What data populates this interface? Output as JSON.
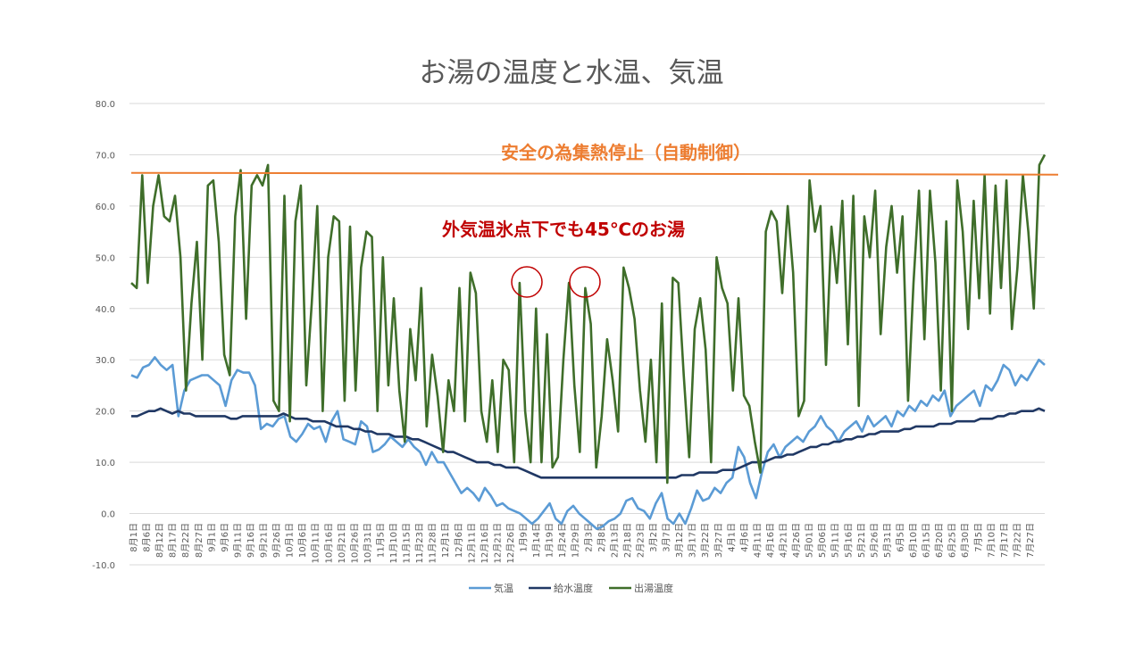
{
  "chart_data": {
    "type": "line",
    "title": "お湯の温度と水温、気温",
    "ylim": [
      -10,
      80
    ],
    "yticks": [
      "80.0",
      "70.0",
      "60.0",
      "50.0",
      "40.0",
      "30.0",
      "20.0",
      "10.0",
      "0.0",
      "-10.0"
    ],
    "x_tick_labels": [
      "8月1日",
      "8月6日",
      "8月12日",
      "8月17日",
      "8月22日",
      "8月27日",
      "9月1日",
      "9月6日",
      "9月11日",
      "9月16日",
      "9月21日",
      "9月26日",
      "10月1日",
      "10月6日",
      "10月11日",
      "10月16日",
      "10月21日",
      "10月26日",
      "10月31日",
      "11月5日",
      "11月10日",
      "11月15日",
      "11月23日",
      "11月28日",
      "12月1日",
      "12月6日",
      "12月11日",
      "12月16日",
      "12月21日",
      "12月26日",
      "1月9日",
      "1月14日",
      "1月19日",
      "1月24日",
      "1月29日",
      "2月3日",
      "2月8日",
      "2月13日",
      "2月18日",
      "2月23日",
      "3月2日",
      "3月7日",
      "3月12日",
      "3月17日",
      "3月22日",
      "3月27日",
      "4月1日",
      "4月6日",
      "4月11日",
      "4月16日",
      "4月21日",
      "4月26日",
      "5月01日",
      "5月06日",
      "5月11日",
      "5月16日",
      "5月21日",
      "5月26日",
      "5月31日",
      "6月5日",
      "6月10日",
      "6月15日",
      "6月20日",
      "6月25日",
      "6月30日",
      "7月5日",
      "7月10日",
      "7月17日",
      "7月22日",
      "7月27日"
    ],
    "grid": true,
    "legend": "bottom",
    "series": [
      {
        "name": "気温",
        "color": "#5b9bd5",
        "values": [
          27,
          26.5,
          28.5,
          29,
          30.5,
          29,
          28,
          29,
          19,
          24,
          26,
          26.5,
          27,
          27,
          26,
          25,
          21,
          26,
          28,
          27.5,
          27.5,
          25,
          16.5,
          17.5,
          17,
          18.5,
          19,
          15,
          14,
          15.5,
          17.5,
          16.5,
          17,
          14,
          18,
          20,
          14.5,
          14,
          13.5,
          18,
          17,
          12,
          12.5,
          13.5,
          15,
          14,
          13,
          14.5,
          13,
          12,
          9.5,
          12,
          10,
          10,
          8,
          6,
          4,
          5,
          4,
          2.5,
          5,
          3.5,
          1.5,
          2,
          1,
          0.5,
          0,
          -1,
          -2,
          -1,
          0.5,
          2,
          -1,
          -2,
          0.5,
          1.5,
          0,
          -1,
          -2,
          -3,
          -2.5,
          -1.5,
          -1,
          0,
          2.5,
          3,
          1,
          0.5,
          -1,
          2,
          4,
          -1,
          -2,
          0,
          -2,
          1,
          4.5,
          2.5,
          3,
          5,
          4,
          6,
          7,
          13,
          11,
          6,
          3,
          8,
          12,
          13.5,
          11,
          13,
          14,
          15,
          14,
          16,
          17,
          19,
          17,
          16,
          14,
          16,
          17,
          18,
          16,
          19,
          17,
          18,
          19,
          17,
          20,
          19,
          21,
          20,
          22,
          21,
          23,
          22,
          24,
          19,
          21,
          22,
          23,
          24,
          21,
          25,
          24,
          26,
          29,
          28,
          25,
          27,
          26,
          28,
          30,
          29
        ]
      },
      {
        "name": "給水温度",
        "color": "#203864",
        "values": [
          19,
          19,
          19.5,
          20,
          20,
          20.5,
          20,
          19.5,
          20,
          19.5,
          19.5,
          19,
          19,
          19,
          19,
          19,
          19,
          18.5,
          18.5,
          19,
          19,
          19,
          19,
          19,
          19,
          19,
          19.5,
          19,
          18.5,
          18.5,
          18.5,
          18,
          18,
          18,
          17.5,
          17,
          17,
          17,
          16.5,
          16.5,
          16,
          16,
          15.5,
          15.5,
          15.5,
          15,
          15,
          15,
          14.5,
          14.5,
          14,
          13.5,
          13,
          12.5,
          12,
          12,
          11.5,
          11,
          10.5,
          10,
          10,
          10,
          9.5,
          9.5,
          9,
          9,
          9,
          8.5,
          8,
          7.5,
          7,
          7,
          7,
          7,
          7,
          7,
          7,
          7,
          7,
          7,
          7,
          7,
          7,
          7,
          7,
          7,
          7,
          7,
          7,
          7,
          7,
          7,
          7,
          7,
          7.5,
          7.5,
          7.5,
          8,
          8,
          8,
          8,
          8.5,
          8.5,
          8.5,
          9,
          9.5,
          10,
          10,
          10,
          10.5,
          11,
          11,
          11.5,
          11.5,
          12,
          12.5,
          13,
          13,
          13.5,
          13.5,
          14,
          14,
          14.5,
          14.5,
          15,
          15,
          15.5,
          15.5,
          16,
          16,
          16,
          16,
          16.5,
          16.5,
          17,
          17,
          17,
          17,
          17.5,
          17.5,
          17.5,
          18,
          18,
          18,
          18,
          18.5,
          18.5,
          18.5,
          19,
          19,
          19.5,
          19.5,
          20,
          20,
          20,
          20.5,
          20
        ]
      },
      {
        "name": "出湯温度",
        "color": "#3f6e2a",
        "values": [
          45,
          44,
          66,
          45,
          60,
          66,
          58,
          57,
          62,
          50,
          24,
          41,
          53,
          30,
          64,
          65,
          53,
          31,
          27,
          58,
          67,
          38,
          64,
          66,
          64,
          68,
          22,
          20,
          62,
          18,
          57,
          64,
          25,
          41,
          60,
          20,
          50,
          58,
          57,
          22,
          56,
          24,
          48,
          55,
          54,
          20,
          50,
          25,
          42,
          24,
          14,
          36,
          26,
          44,
          17,
          31,
          23,
          12,
          26,
          20,
          44,
          18,
          47,
          43,
          20,
          14,
          26,
          12,
          30,
          28,
          10,
          45,
          20,
          10,
          40,
          10,
          35,
          9,
          11,
          30,
          45,
          25,
          12,
          44,
          37,
          9,
          19,
          34,
          26,
          16,
          48,
          44,
          38,
          24,
          14,
          30,
          10,
          41,
          6,
          46,
          45,
          27,
          11,
          36,
          42,
          32,
          10,
          50,
          44,
          41,
          24,
          42,
          23,
          21,
          14,
          8,
          55,
          59,
          57,
          43,
          60,
          47,
          19,
          22,
          65,
          55,
          60,
          29,
          56,
          45,
          61,
          33,
          62,
          21,
          58,
          50,
          63,
          35,
          52,
          60,
          47,
          58,
          22,
          45,
          63,
          34,
          63,
          49,
          24,
          57,
          20,
          65,
          55,
          36,
          61,
          42,
          66,
          39,
          64,
          44,
          65,
          36,
          48,
          66,
          55,
          40,
          68,
          70
        ]
      }
    ],
    "annotations": [
      {
        "text": "安全の為集熱停止（自動制御）",
        "color": "#ed7d31"
      },
      {
        "text": "外気温氷点下でも45℃のお湯",
        "color": "#c00000"
      }
    ],
    "threshold_line": {
      "value": 66.3,
      "color": "#ed7d31"
    }
  }
}
